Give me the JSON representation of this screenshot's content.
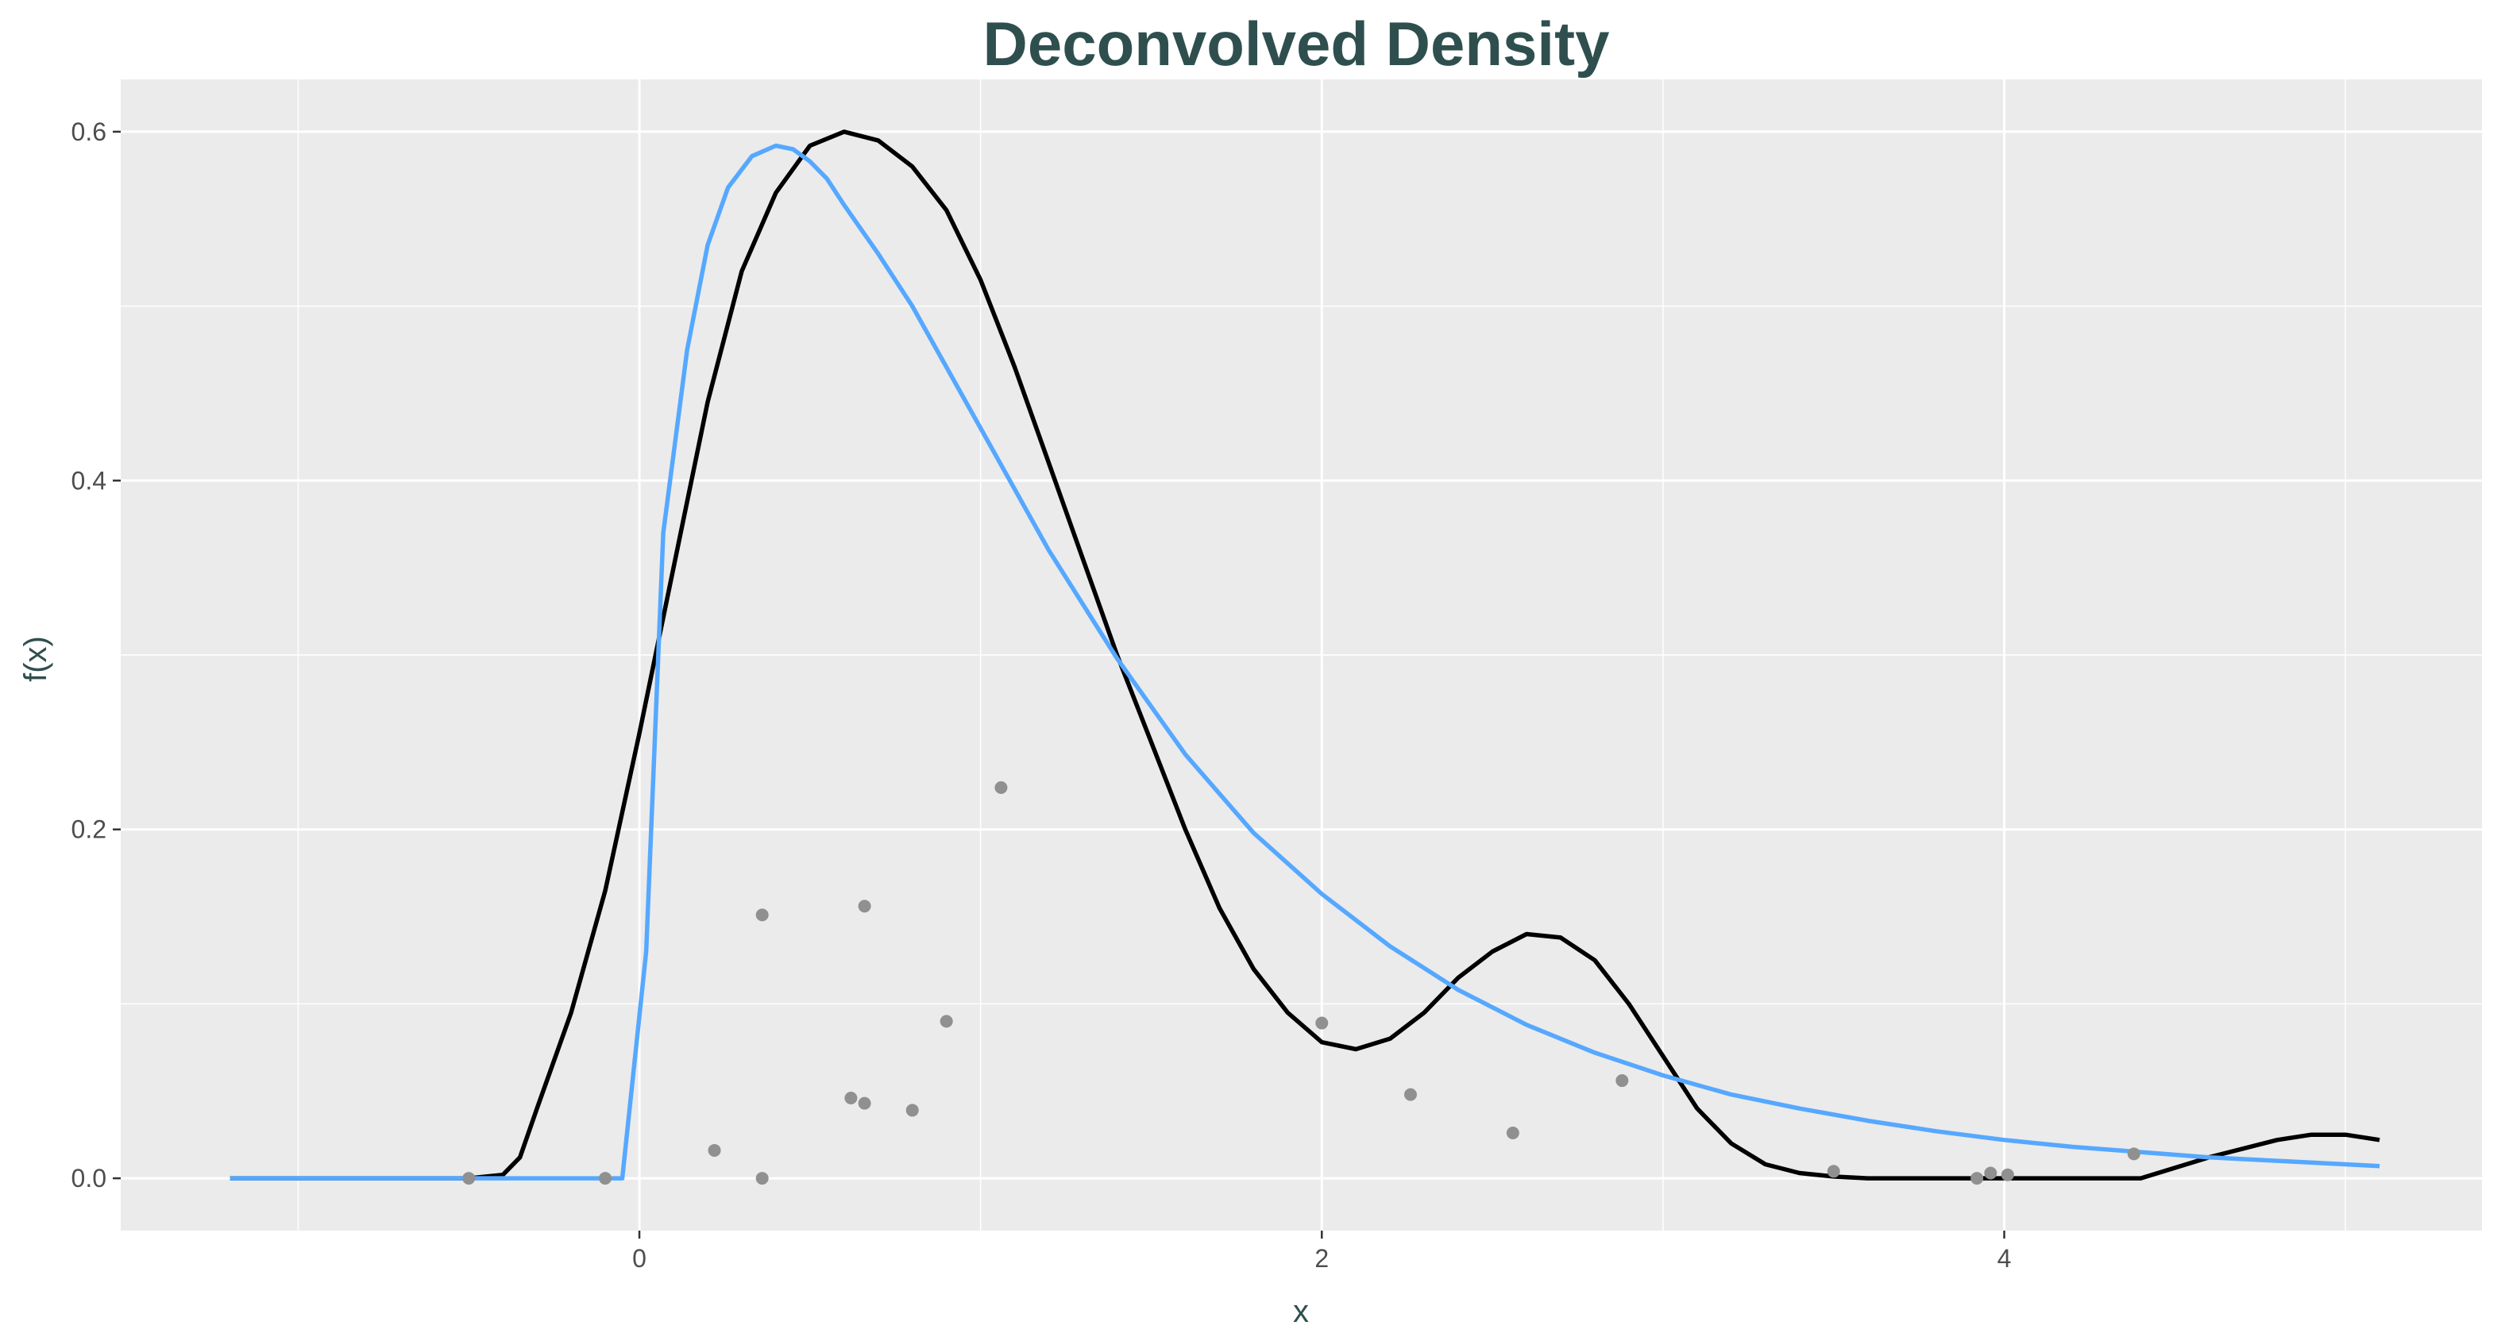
{
  "chart_data": {
    "type": "line",
    "title": "Deconvolved Density",
    "xlabel": "x",
    "ylabel": "f(x)",
    "xlim": [
      -1.52,
      5.4
    ],
    "ylim": [
      -0.03,
      0.63
    ],
    "x_ticks": [
      0,
      2,
      4
    ],
    "x_tick_labels": [
      "0",
      "2",
      "4"
    ],
    "y_ticks": [
      0.0,
      0.2,
      0.4,
      0.6
    ],
    "y_tick_labels": [
      "0.0",
      "0.2",
      "0.4",
      "0.6"
    ],
    "grid": true,
    "background": "#ebebeb",
    "series": [
      {
        "color": "#000000",
        "x": [
          -1.2,
          -0.5,
          -0.4,
          -0.35,
          -0.3,
          -0.2,
          -0.1,
          0.0,
          0.1,
          0.2,
          0.3,
          0.4,
          0.5,
          0.6,
          0.7,
          0.8,
          0.9,
          1.0,
          1.1,
          1.2,
          1.3,
          1.4,
          1.5,
          1.6,
          1.7,
          1.8,
          1.9,
          2.0,
          2.1,
          2.2,
          2.3,
          2.4,
          2.5,
          2.6,
          2.7,
          2.8,
          2.9,
          3.0,
          3.1,
          3.2,
          3.3,
          3.4,
          3.5,
          3.6,
          3.7,
          3.8,
          3.9,
          4.0,
          4.2,
          4.4,
          4.6,
          4.8,
          4.9,
          5.0,
          5.1
        ],
        "y": [
          0.0,
          0.0,
          0.002,
          0.012,
          0.04,
          0.095,
          0.165,
          0.255,
          0.35,
          0.445,
          0.52,
          0.565,
          0.592,
          0.6,
          0.595,
          0.58,
          0.555,
          0.515,
          0.465,
          0.41,
          0.355,
          0.3,
          0.25,
          0.2,
          0.155,
          0.12,
          0.095,
          0.078,
          0.074,
          0.08,
          0.095,
          0.115,
          0.13,
          0.14,
          0.138,
          0.125,
          0.1,
          0.07,
          0.04,
          0.02,
          0.008,
          0.003,
          0.001,
          0.0,
          0.0,
          0.0,
          0.0,
          0.0,
          0.0,
          0.0,
          0.012,
          0.022,
          0.025,
          0.025,
          0.022
        ]
      },
      {
        "color": "#56a8ff",
        "x": [
          -1.2,
          -0.05,
          0.02,
          0.07,
          0.14,
          0.2,
          0.26,
          0.33,
          0.4,
          0.45,
          0.5,
          0.55,
          0.6,
          0.7,
          0.8,
          0.9,
          1.0,
          1.2,
          1.4,
          1.6,
          1.8,
          2.0,
          2.2,
          2.4,
          2.6,
          2.8,
          3.0,
          3.2,
          3.4,
          3.6,
          3.8,
          4.0,
          4.2,
          4.4,
          4.6,
          4.8,
          5.0,
          5.1
        ],
        "y": [
          0.0,
          0.0,
          0.13,
          0.37,
          0.475,
          0.535,
          0.568,
          0.586,
          0.592,
          0.59,
          0.583,
          0.573,
          0.558,
          0.53,
          0.5,
          0.465,
          0.43,
          0.36,
          0.298,
          0.243,
          0.198,
          0.163,
          0.133,
          0.108,
          0.088,
          0.072,
          0.059,
          0.048,
          0.04,
          0.033,
          0.027,
          0.022,
          0.018,
          0.015,
          0.012,
          0.01,
          0.008,
          0.007
        ]
      }
    ],
    "points": {
      "color": "#909090",
      "x": [
        -0.5,
        -0.1,
        0.22,
        0.36,
        0.36,
        0.62,
        0.66,
        0.66,
        0.8,
        0.9,
        1.06,
        2.0,
        2.26,
        2.56,
        2.88,
        3.5,
        3.92,
        3.96,
        4.01,
        4.38
      ],
      "y": [
        0.0,
        0.0,
        0.016,
        0.151,
        0.0,
        0.046,
        0.043,
        0.156,
        0.039,
        0.09,
        0.224,
        0.089,
        0.048,
        0.026,
        0.056,
        0.004,
        0.0,
        0.003,
        0.002,
        0.014
      ]
    }
  }
}
